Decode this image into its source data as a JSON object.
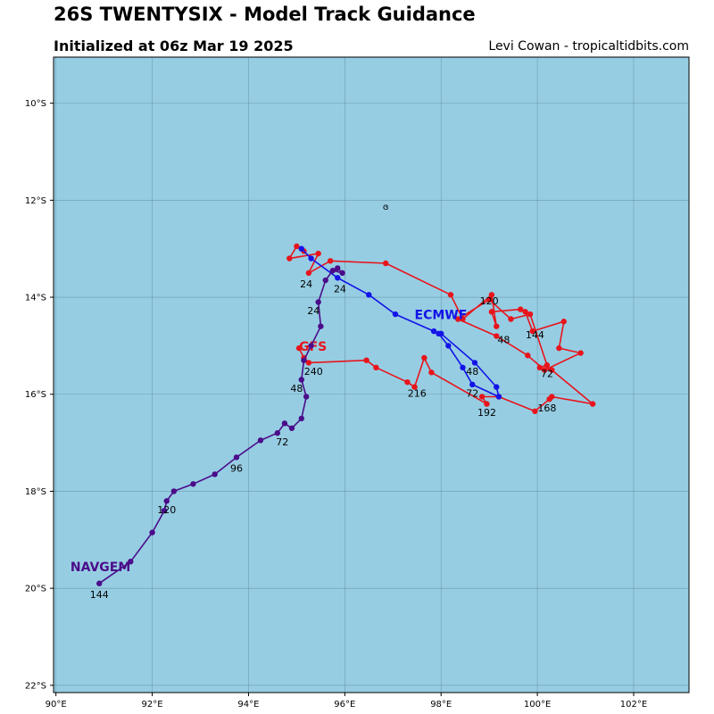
{
  "header": {
    "title": "26S TWENTYSIX - Model Track Guidance",
    "subtitle": "Initialized at 06z Mar 19 2025",
    "credit": "Levi Cowan - tropicaltidbits.com"
  },
  "map": {
    "ocean_color": "#96cde3",
    "grid_color": "#5b8797",
    "lon_range": [
      89.95,
      103.15
    ],
    "lat_range": [
      -22.15,
      -9.05
    ],
    "lon_ticks": [
      {
        "value": 90,
        "label": "90°E"
      },
      {
        "value": 92,
        "label": "92°E"
      },
      {
        "value": 94,
        "label": "94°E"
      },
      {
        "value": 96,
        "label": "96°E"
      },
      {
        "value": 98,
        "label": "98°E"
      },
      {
        "value": 100,
        "label": "100°E"
      },
      {
        "value": 102,
        "label": "102°E"
      }
    ],
    "lat_ticks": [
      {
        "value": -10,
        "label": "10°S"
      },
      {
        "value": -12,
        "label": "12°S"
      },
      {
        "value": -14,
        "label": "14°S"
      },
      {
        "value": -16,
        "label": "16°S"
      },
      {
        "value": -18,
        "label": "18°S"
      },
      {
        "value": -20,
        "label": "20°S"
      },
      {
        "value": -22,
        "label": "22°S"
      }
    ],
    "storm_marker": {
      "symbol": "ɞ",
      "lon": 96.85,
      "lat": -12.2
    },
    "models": [
      {
        "name": "GFS",
        "color": "#e8141b",
        "label_position": {
          "lon": 95.05,
          "lat": -15.1
        },
        "points": [
          [
            95.15,
            -13.05
          ],
          [
            95.0,
            -12.95
          ],
          [
            94.85,
            -13.2
          ],
          [
            95.45,
            -13.1
          ],
          [
            95.25,
            -13.5
          ],
          [
            95.7,
            -13.25
          ],
          [
            96.85,
            -13.3
          ],
          [
            98.2,
            -13.95
          ],
          [
            98.45,
            -14.45
          ],
          [
            99.05,
            -13.95
          ],
          [
            99.15,
            -14.6
          ],
          [
            99.05,
            -14.3
          ],
          [
            99.65,
            -14.25
          ],
          [
            99.75,
            -14.3
          ],
          [
            99.9,
            -14.7
          ],
          [
            100.55,
            -14.5
          ],
          [
            100.45,
            -15.05
          ],
          [
            100.9,
            -15.15
          ],
          [
            100.15,
            -15.5
          ],
          [
            99.8,
            -15.2
          ],
          [
            99.15,
            -14.8
          ],
          [
            98.35,
            -14.45
          ],
          [
            99.0,
            -14.05
          ],
          [
            99.45,
            -14.45
          ],
          [
            99.85,
            -14.35
          ],
          [
            100.2,
            -15.4
          ],
          [
            100.05,
            -15.45
          ],
          [
            100.3,
            -15.5
          ],
          [
            101.15,
            -16.2
          ],
          [
            100.3,
            -16.05
          ],
          [
            100.25,
            -16.1
          ],
          [
            99.95,
            -16.35
          ],
          [
            99.2,
            -16.05
          ],
          [
            98.85,
            -16.05
          ],
          [
            98.95,
            -16.2
          ],
          [
            97.8,
            -15.55
          ],
          [
            97.65,
            -15.25
          ],
          [
            97.45,
            -15.85
          ],
          [
            97.3,
            -15.75
          ],
          [
            96.65,
            -15.45
          ],
          [
            96.45,
            -15.3
          ],
          [
            95.25,
            -15.35
          ],
          [
            95.15,
            -15.25
          ],
          [
            95.05,
            -15.05
          ]
        ],
        "time_labels": [
          {
            "text": "24",
            "lon": 95.2,
            "lat": -13.8
          },
          {
            "text": "48",
            "lon": 99.3,
            "lat": -14.95
          },
          {
            "text": "72",
            "lon": 100.2,
            "lat": -15.65
          },
          {
            "text": "120",
            "lon": 99.0,
            "lat": -14.15
          },
          {
            "text": "144",
            "lon": 99.95,
            "lat": -14.85
          },
          {
            "text": "168",
            "lon": 100.2,
            "lat": -16.35
          },
          {
            "text": "192",
            "lon": 98.95,
            "lat": -16.45
          },
          {
            "text": "216",
            "lon": 97.5,
            "lat": -16.05
          },
          {
            "text": "240",
            "lon": 95.35,
            "lat": -15.6
          }
        ]
      },
      {
        "name": "ECMWF",
        "color": "#1414e8",
        "label_position": {
          "lon": 97.45,
          "lat": -14.45
        },
        "points": [
          [
            95.1,
            -13.0
          ],
          [
            95.3,
            -13.2
          ],
          [
            95.85,
            -13.6
          ],
          [
            96.5,
            -13.95
          ],
          [
            97.05,
            -14.35
          ],
          [
            97.85,
            -14.7
          ],
          [
            97.95,
            -14.75
          ],
          [
            98.15,
            -15.0
          ],
          [
            98.45,
            -15.45
          ],
          [
            98.65,
            -15.8
          ],
          [
            99.2,
            -16.05
          ],
          [
            99.15,
            -15.85
          ],
          [
            98.7,
            -15.35
          ],
          [
            98.0,
            -14.75
          ]
        ],
        "time_labels": [
          {
            "text": "24",
            "lon": 95.9,
            "lat": -13.9
          },
          {
            "text": "48",
            "lon": 98.65,
            "lat": -15.6
          },
          {
            "text": "72",
            "lon": 98.65,
            "lat": -16.05
          }
        ]
      },
      {
        "name": "NAVGEM",
        "color": "#4b0c8a",
        "label_position": {
          "lon": 90.3,
          "lat": -19.65
        },
        "points": [
          [
            95.85,
            -13.4
          ],
          [
            95.95,
            -13.5
          ],
          [
            95.75,
            -13.45
          ],
          [
            95.6,
            -13.65
          ],
          [
            95.45,
            -14.1
          ],
          [
            95.5,
            -14.6
          ],
          [
            95.3,
            -15.0
          ],
          [
            95.15,
            -15.3
          ],
          [
            95.1,
            -15.7
          ],
          [
            95.2,
            -16.05
          ],
          [
            95.1,
            -16.5
          ],
          [
            94.9,
            -16.7
          ],
          [
            94.75,
            -16.6
          ],
          [
            94.6,
            -16.8
          ],
          [
            94.25,
            -16.95
          ],
          [
            93.75,
            -17.3
          ],
          [
            93.3,
            -17.65
          ],
          [
            92.85,
            -17.85
          ],
          [
            92.45,
            -18.0
          ],
          [
            92.3,
            -18.2
          ],
          [
            92.25,
            -18.4
          ],
          [
            92.0,
            -18.85
          ],
          [
            91.55,
            -19.45
          ],
          [
            90.9,
            -19.9
          ]
        ],
        "time_labels": [
          {
            "text": "24",
            "lon": 95.35,
            "lat": -14.35
          },
          {
            "text": "48",
            "lon": 95.0,
            "lat": -15.95
          },
          {
            "text": "72",
            "lon": 94.7,
            "lat": -17.05
          },
          {
            "text": "96",
            "lon": 93.75,
            "lat": -17.6
          },
          {
            "text": "120",
            "lon": 92.3,
            "lat": -18.45
          },
          {
            "text": "144",
            "lon": 90.9,
            "lat": -20.2
          }
        ]
      }
    ]
  }
}
